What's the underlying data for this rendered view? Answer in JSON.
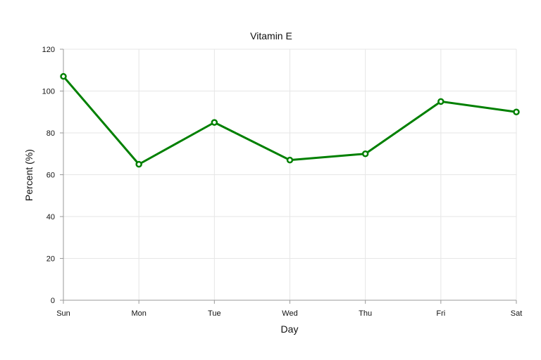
{
  "chart_data": {
    "type": "line",
    "title": "Vitamin E",
    "xlabel": "Day",
    "ylabel": "Percent (%)",
    "categories": [
      "Sun",
      "Mon",
      "Tue",
      "Wed",
      "Thu",
      "Fri",
      "Sat"
    ],
    "series": [
      {
        "values": [
          107,
          65,
          85,
          67,
          70,
          95,
          90
        ],
        "color": "#008000"
      }
    ],
    "ylim": [
      0,
      120
    ],
    "yticks": [
      "0",
      "20",
      "40",
      "60",
      "80",
      "100",
      "120"
    ],
    "grid": true,
    "legend": "none"
  }
}
